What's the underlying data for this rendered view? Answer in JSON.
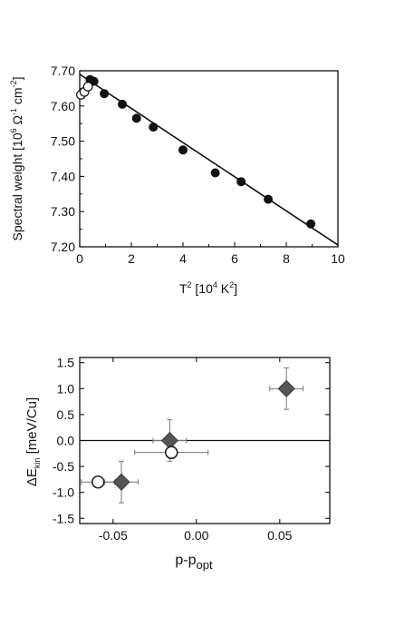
{
  "chart_data": [
    {
      "type": "scatter",
      "xlabel": "T",
      "xlabel_sup": "2",
      "xlabel_unit": " [10",
      "xlabel_unit_sup": "4",
      "xlabel_unit_tail": " K",
      "xlabel_unit_tail_sup": "2",
      "xlabel_close": "]",
      "ylabel": "Spectral weight [10",
      "ylabel_sup1": "6",
      "ylabel_mid": " Ω",
      "ylabel_sup2": "-1",
      "ylabel_mid2": " cm",
      "ylabel_sup3": "-2",
      "ylabel_close": "]",
      "xlim": [
        0,
        10
      ],
      "ylim": [
        7.2,
        7.7
      ],
      "xticks": [
        0,
        2,
        4,
        6,
        8,
        10
      ],
      "yticks": [
        "7.20",
        "7.30",
        "7.40",
        "7.50",
        "7.60",
        "7.70"
      ],
      "series": [
        {
          "marker": "filled-circle",
          "points": [
            {
              "x": 0.4,
              "y": 7.675
            },
            {
              "x": 0.55,
              "y": 7.67
            },
            {
              "x": 0.95,
              "y": 7.635
            },
            {
              "x": 1.65,
              "y": 7.605
            },
            {
              "x": 2.2,
              "y": 7.565
            },
            {
              "x": 2.85,
              "y": 7.54
            },
            {
              "x": 4.0,
              "y": 7.475
            },
            {
              "x": 5.25,
              "y": 7.41
            },
            {
              "x": 6.25,
              "y": 7.385
            },
            {
              "x": 7.3,
              "y": 7.335
            },
            {
              "x": 8.95,
              "y": 7.265
            }
          ]
        },
        {
          "marker": "open-circle",
          "points": [
            {
              "x": 0.05,
              "y": 7.632
            },
            {
              "x": 0.18,
              "y": 7.64
            },
            {
              "x": 0.32,
              "y": 7.655
            }
          ]
        }
      ],
      "fit_line": {
        "x": [
          0,
          10
        ],
        "y": [
          7.69,
          7.205
        ]
      }
    },
    {
      "type": "scatter",
      "xlabel": "p-p",
      "xlabel_sub": "opt",
      "ylabel": "ΔE",
      "ylabel_sub": "kin",
      "ylabel_unit": " [meV/Cu]",
      "xlim": [
        -0.07,
        0.08
      ],
      "ylim": [
        -1.6,
        1.6
      ],
      "xticks": [
        "-0.05",
        "0.00",
        "0.05"
      ],
      "xtick_values": [
        -0.05,
        0.0,
        0.05
      ],
      "yticks": [
        "1.5",
        "1.0",
        "0.5",
        "0.0",
        "-0.5",
        "-1.0",
        "-1.5"
      ],
      "ytick_values": [
        1.5,
        1.0,
        0.5,
        0.0,
        -0.5,
        -1.0,
        -1.5
      ],
      "zero_line": 0,
      "series": [
        {
          "marker": "filled-diamond",
          "points": [
            {
              "x": -0.045,
              "y": -0.8,
              "xerr": 0.01,
              "yerr": 0.4
            },
            {
              "x": -0.016,
              "y": 0.0,
              "xerr": 0.01,
              "yerr": 0.4
            },
            {
              "x": 0.054,
              "y": 1.0,
              "xerr": 0.01,
              "yerr": 0.4
            }
          ]
        },
        {
          "marker": "open-circle",
          "points": [
            {
              "x": -0.059,
              "y": -0.8,
              "xerr": 0.01,
              "yerr": 0.0
            },
            {
              "x": -0.015,
              "y": -0.23,
              "xerr": 0.022,
              "yerr": 0.12
            }
          ]
        }
      ]
    }
  ]
}
